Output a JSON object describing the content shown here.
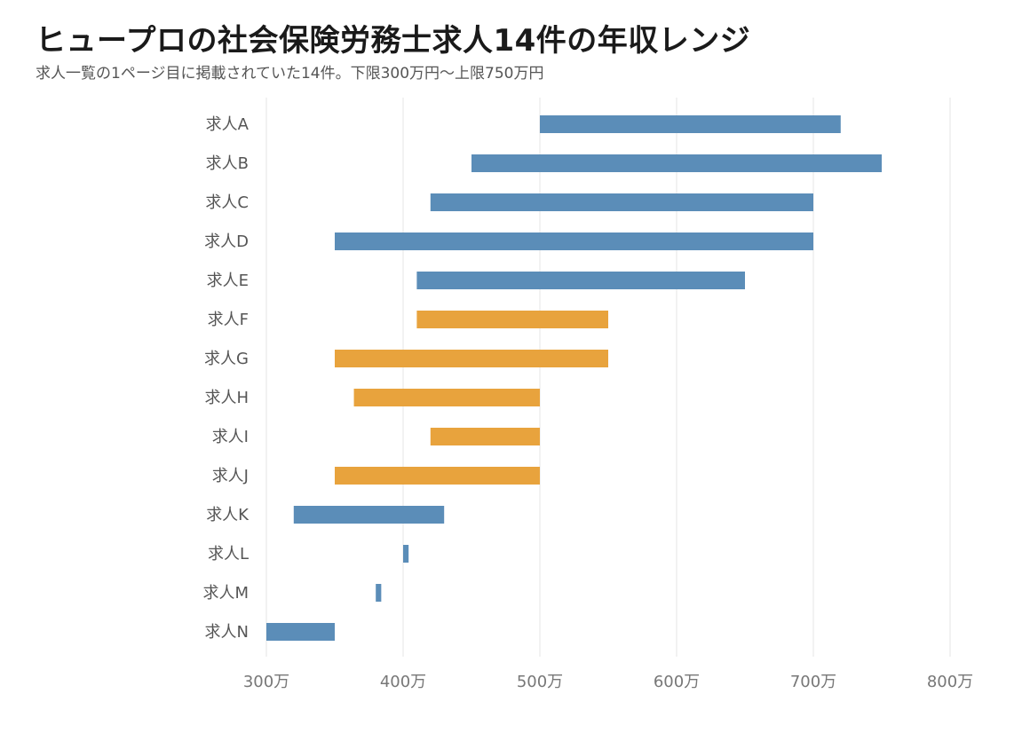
{
  "title": "ヒュープロの社会保険労務士求人14件の年収レンジ",
  "subtitle": "求人一覧の1ページ目に掲載されていた14件。下限300万円〜上限750万円",
  "colors": {
    "blue": "#5b8db8",
    "orange": "#e8a33d",
    "grid": "#e6e6e6"
  },
  "chart_data": {
    "type": "bar",
    "orientation": "horizontal-range",
    "categories": [
      "求人A",
      "求人B",
      "求人C",
      "求人D",
      "求人E",
      "求人F",
      "求人G",
      "求人H",
      "求人I",
      "求人J",
      "求人K",
      "求人L",
      "求人M",
      "求人N"
    ],
    "ranges": [
      {
        "low": 500,
        "high": 720,
        "color": "blue"
      },
      {
        "low": 450,
        "high": 750,
        "color": "blue"
      },
      {
        "low": 420,
        "high": 700,
        "color": "blue"
      },
      {
        "low": 350,
        "high": 700,
        "color": "blue"
      },
      {
        "low": 410,
        "high": 650,
        "color": "blue"
      },
      {
        "low": 410,
        "high": 550,
        "color": "orange"
      },
      {
        "low": 350,
        "high": 550,
        "color": "orange"
      },
      {
        "low": 364,
        "high": 500,
        "color": "orange"
      },
      {
        "low": 420,
        "high": 500,
        "color": "orange"
      },
      {
        "low": 350,
        "high": 500,
        "color": "orange"
      },
      {
        "low": 320,
        "high": 430,
        "color": "blue"
      },
      {
        "low": 400,
        "high": 404,
        "color": "blue"
      },
      {
        "low": 380,
        "high": 384,
        "color": "blue"
      },
      {
        "low": 300,
        "high": 350,
        "color": "blue"
      }
    ],
    "x_ticks": [
      300,
      400,
      500,
      600,
      700,
      800
    ],
    "x_tick_labels": [
      "300万",
      "400万",
      "500万",
      "600万",
      "700万",
      "800万"
    ],
    "xlim": [
      300,
      800
    ],
    "grid": true
  }
}
